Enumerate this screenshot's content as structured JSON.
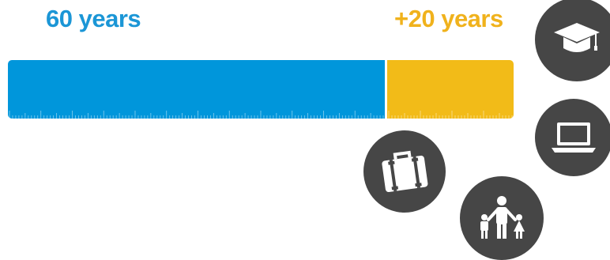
{
  "labels": {
    "base_years": "60 years",
    "extra_years": "+20 years"
  },
  "bar": {
    "base_value": 60,
    "extra_value": 20,
    "base_color": "#0096db",
    "extra_color": "#f2bb18"
  },
  "icons": [
    {
      "name": "graduation-cap-icon"
    },
    {
      "name": "laptop-icon"
    },
    {
      "name": "briefcase-icon"
    },
    {
      "name": "family-icon"
    }
  ],
  "colors": {
    "label_blue": "#1b96d6",
    "label_gold": "#f0b21c",
    "icon_circle": "#464646"
  }
}
